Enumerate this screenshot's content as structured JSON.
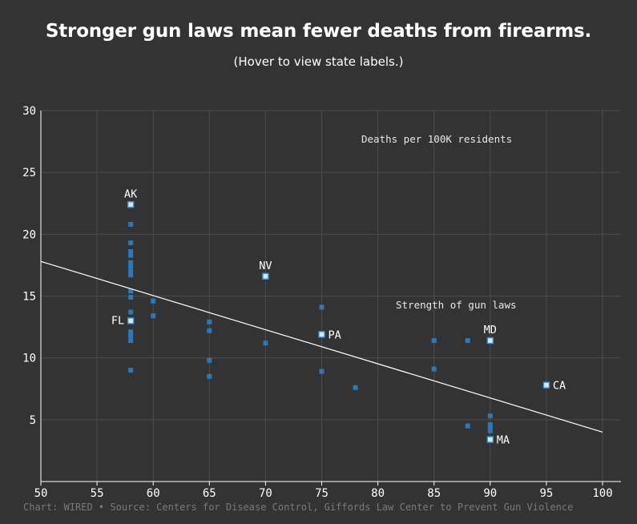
{
  "title": "Stronger gun laws mean fewer deaths from firearms.",
  "subtitle": "(Hover to view state labels.)",
  "source": "Chart: WIRED • Source: Centers for Disease Control, Giffords Law Center to Prevent Gun Violence",
  "colors": {
    "background": "#333333",
    "point": "#2a79bd",
    "highlight_fill": "#d6e8f5",
    "highlight_stroke": "#3a8fd8",
    "trend": "#ffffff",
    "grid": "#4d4d4d"
  },
  "chart_data": {
    "type": "scatter",
    "xlabel": "Strength of gun laws",
    "ylabel": "Deaths per 100K residents",
    "xlim": [
      50,
      100
    ],
    "ylim": [
      0,
      30
    ],
    "xticks": [
      "50",
      "55",
      "60",
      "65",
      "70",
      "75",
      "80",
      "85",
      "90",
      "95",
      "100"
    ],
    "yticks": [
      "5",
      "10",
      "15",
      "20",
      "25",
      "30"
    ],
    "grid": true,
    "points": [
      {
        "x": 58,
        "y": 22.4,
        "label": "AK"
      },
      {
        "x": 58,
        "y": 20.8
      },
      {
        "x": 58,
        "y": 19.3
      },
      {
        "x": 58,
        "y": 18.6
      },
      {
        "x": 58,
        "y": 18.3
      },
      {
        "x": 58,
        "y": 17.7
      },
      {
        "x": 58,
        "y": 17.4
      },
      {
        "x": 58,
        "y": 17.0
      },
      {
        "x": 58,
        "y": 16.7
      },
      {
        "x": 58,
        "y": 15.4
      },
      {
        "x": 58,
        "y": 14.9
      },
      {
        "x": 58,
        "y": 13.7
      },
      {
        "x": 58,
        "y": 13.0,
        "label": "FL"
      },
      {
        "x": 58,
        "y": 12.1
      },
      {
        "x": 58,
        "y": 11.8
      },
      {
        "x": 58,
        "y": 11.4
      },
      {
        "x": 58,
        "y": 9.0
      },
      {
        "x": 60,
        "y": 14.6
      },
      {
        "x": 60,
        "y": 13.4
      },
      {
        "x": 65,
        "y": 12.9
      },
      {
        "x": 65,
        "y": 12.2
      },
      {
        "x": 65,
        "y": 9.8
      },
      {
        "x": 65,
        "y": 8.5
      },
      {
        "x": 70,
        "y": 16.6,
        "label": "NV"
      },
      {
        "x": 70,
        "y": 11.2
      },
      {
        "x": 75,
        "y": 14.1
      },
      {
        "x": 75,
        "y": 11.9,
        "label": "PA"
      },
      {
        "x": 75,
        "y": 8.9
      },
      {
        "x": 78,
        "y": 7.6
      },
      {
        "x": 85,
        "y": 11.4
      },
      {
        "x": 85,
        "y": 9.1
      },
      {
        "x": 88,
        "y": 11.4
      },
      {
        "x": 88,
        "y": 4.5
      },
      {
        "x": 90,
        "y": 11.4,
        "label": "MD"
      },
      {
        "x": 90,
        "y": 5.3
      },
      {
        "x": 90,
        "y": 4.6
      },
      {
        "x": 90,
        "y": 4.4
      },
      {
        "x": 90,
        "y": 4.1
      },
      {
        "x": 90,
        "y": 3.4,
        "label": "MA"
      },
      {
        "x": 95,
        "y": 7.8,
        "label": "CA"
      }
    ],
    "trendline": [
      {
        "x": 50,
        "y": 17.8
      },
      {
        "x": 100,
        "y": 4.0
      }
    ]
  }
}
